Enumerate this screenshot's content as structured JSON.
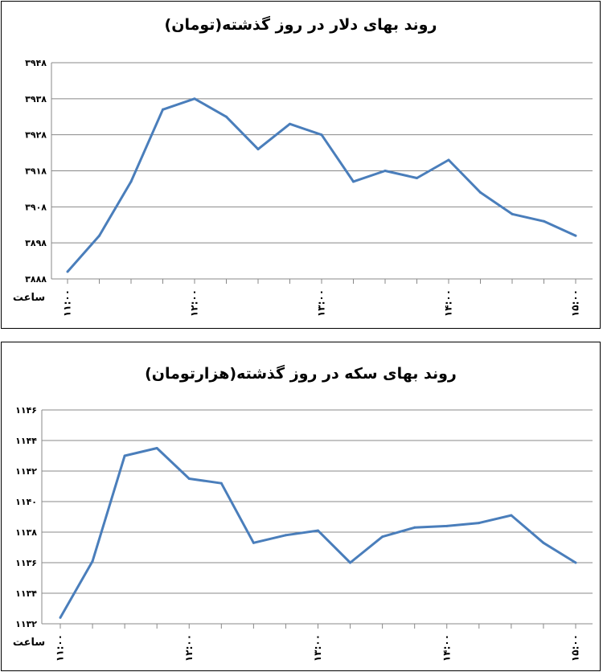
{
  "chart_data": [
    {
      "type": "line",
      "title": "روند بهای دلار در روز گذشته(تومان)",
      "xlabel": "ساعت",
      "ylabel": "",
      "ylim": [
        3888,
        3948
      ],
      "yticks": [
        3888,
        3898,
        3908,
        3918,
        3928,
        3938,
        3948
      ],
      "ytick_labels": [
        "۳۸۸۸",
        "۳۸۹۸",
        "۳۹۰۸",
        "۳۹۱۸",
        "۳۹۲۸",
        "۳۹۳۸",
        "۳۹۴۸"
      ],
      "xtick_labels": [
        "۱۱:۰۰",
        "۱۲:۰۰",
        "۱۳:۰۰",
        "۱۴:۰۰",
        "۱۵:۰۰"
      ],
      "xtick_positions": [
        0,
        4,
        8,
        12,
        16
      ],
      "x_count": 17,
      "grid": true,
      "legend": "none",
      "series_color": "#4a7ebb",
      "series": [
        {
          "values": [
            3890,
            3900,
            3915,
            3935,
            3938,
            3933,
            3924,
            3931,
            3928,
            3915,
            3918,
            3916,
            3921,
            3912,
            3906,
            3904,
            3900
          ]
        }
      ]
    },
    {
      "type": "line",
      "title": "روند بهای سکه در روز گذشته(هزارتومان)",
      "xlabel": "ساعت",
      "ylabel": "",
      "ylim": [
        1132,
        1146
      ],
      "yticks": [
        1132,
        1134,
        1136,
        1138,
        1140,
        1142,
        1144,
        1146
      ],
      "ytick_labels": [
        "۱۱۳۲",
        "۱۱۳۴",
        "۱۱۳۶",
        "۱۱۳۸",
        "۱۱۴۰",
        "۱۱۴۲",
        "۱۱۴۴",
        "۱۱۴۶"
      ],
      "xtick_labels": [
        "۱۱:۰۰",
        "۱۲:۰۰",
        "۱۳:۰۰",
        "۱۴:۰۰",
        "۱۵:۰۰"
      ],
      "xtick_positions": [
        0,
        4,
        8,
        12,
        16
      ],
      "x_count": 17,
      "grid": true,
      "legend": "none",
      "series_color": "#4a7ebb",
      "series": [
        {
          "values": [
            1132.4,
            1136.1,
            1143.0,
            1143.5,
            1141.5,
            1141.2,
            1137.3,
            1137.8,
            1138.1,
            1136.0,
            1137.7,
            1138.3,
            1138.4,
            1138.6,
            1139.1,
            1137.3,
            1136.0
          ]
        }
      ]
    }
  ]
}
